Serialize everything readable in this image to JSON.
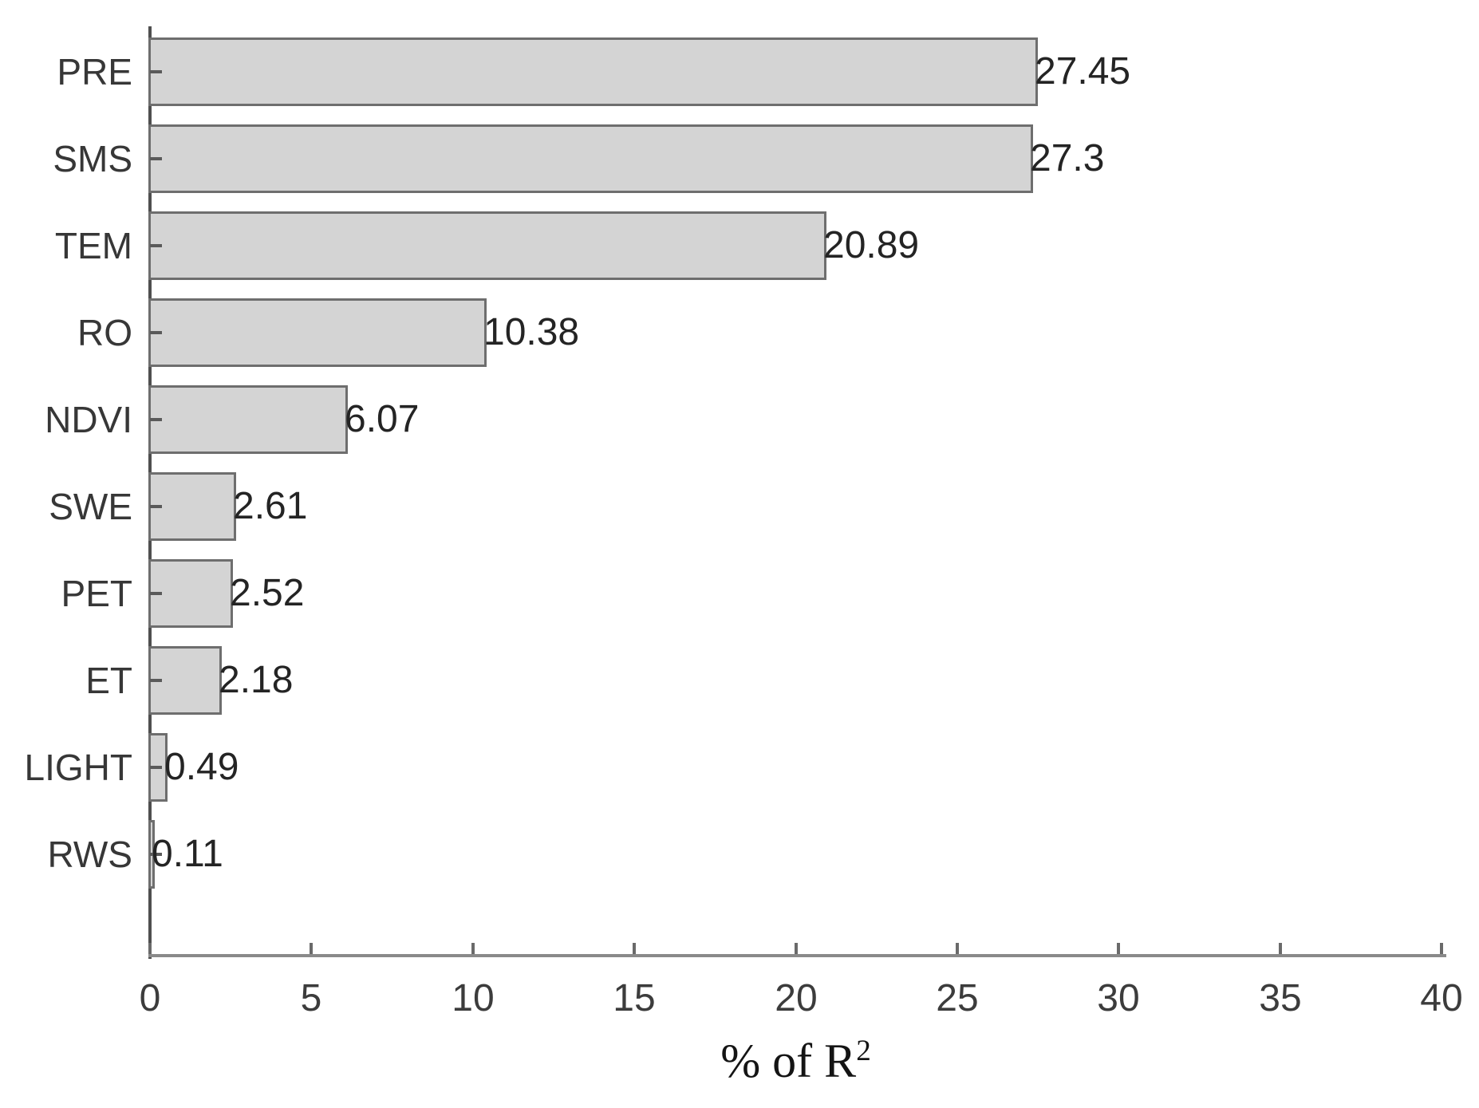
{
  "chart_data": {
    "type": "bar",
    "orientation": "horizontal",
    "title": "",
    "categories": [
      "PRE",
      "SMS",
      "TEM",
      "RO",
      "NDVI",
      "SWE",
      "PET",
      "ET",
      "LIGHT",
      "RWS"
    ],
    "values": [
      27.45,
      27.3,
      20.89,
      10.38,
      6.07,
      2.61,
      2.52,
      2.18,
      0.49,
      0.11
    ],
    "value_labels": [
      "27.45",
      "27.3",
      "20.89",
      "10.38",
      "6.07",
      "2.61",
      "2.52",
      "2.18",
      "0.49",
      "0.11"
    ],
    "xlabel": "% of R²",
    "ylabel": "",
    "xlim": [
      0,
      40
    ],
    "x_ticks": [
      0,
      5,
      10,
      15,
      20,
      25,
      30,
      35,
      40
    ],
    "grid": false,
    "legend_position": "none",
    "bar_fill_color": "#d4d4d4",
    "bar_border_color": "#6e6e6e",
    "y_axis_color": "#4f4f4f",
    "x_axis_color": "#8a8a8a"
  },
  "x_axis_title": {
    "text": "% of R",
    "superscript": "2"
  }
}
